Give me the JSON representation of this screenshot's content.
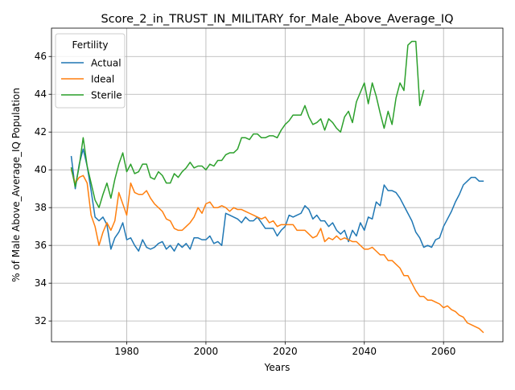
{
  "chart_data": {
    "type": "line",
    "title": "Score_2_in_TRUST_IN_MILITARY_for_Male_Above_Average_IQ",
    "xlabel": "Years",
    "ylabel": "% of Male Above_Average_IQ Population",
    "xlim": [
      1961,
      2075
    ],
    "ylim": [
      30.9,
      47.5
    ],
    "xticks": [
      1980,
      2000,
      2020,
      2040,
      2060
    ],
    "yticks": [
      32,
      34,
      36,
      38,
      40,
      42,
      44,
      46
    ],
    "grid": true,
    "legend": {
      "title": "Fertility",
      "placement": "top-left"
    },
    "x": [
      1966,
      1967,
      1968,
      1969,
      1970,
      1971,
      1972,
      1973,
      1974,
      1975,
      1976,
      1977,
      1978,
      1979,
      1980,
      1981,
      1982,
      1983,
      1984,
      1985,
      1986,
      1987,
      1988,
      1989,
      1990,
      1991,
      1992,
      1993,
      1994,
      1995,
      1996,
      1997,
      1998,
      1999,
      2000,
      2001,
      2002,
      2003,
      2004,
      2005,
      2006,
      2007,
      2008,
      2009,
      2010,
      2011,
      2012,
      2013,
      2014,
      2015,
      2016,
      2017,
      2018,
      2019,
      2020,
      2021,
      2022,
      2023,
      2024,
      2025,
      2026,
      2027,
      2028,
      2029,
      2030,
      2031,
      2032,
      2033,
      2034,
      2035,
      2036,
      2037,
      2038,
      2039,
      2040,
      2041,
      2042,
      2043,
      2044,
      2045,
      2046,
      2047,
      2048,
      2049,
      2050,
      2051,
      2052,
      2053,
      2054,
      2055,
      2056,
      2057,
      2058,
      2059,
      2060,
      2061,
      2062,
      2063,
      2064,
      2065,
      2066,
      2067,
      2068,
      2069,
      2070
    ],
    "series": [
      {
        "name": "Actual",
        "color": "#1f77b4",
        "values": [
          40.7,
          39.0,
          40.3,
          41.1,
          40.2,
          38.9,
          37.5,
          37.3,
          37.5,
          37.1,
          35.8,
          36.4,
          36.7,
          37.2,
          36.3,
          36.4,
          36.0,
          35.7,
          36.3,
          35.9,
          35.8,
          35.9,
          36.1,
          36.2,
          35.8,
          36.0,
          35.7,
          36.1,
          35.9,
          36.1,
          35.8,
          36.4,
          36.4,
          36.3,
          36.3,
          36.5,
          36.1,
          36.2,
          36.0,
          37.7,
          37.6,
          37.5,
          37.4,
          37.2,
          37.5,
          37.3,
          37.3,
          37.5,
          37.2,
          36.9,
          36.9,
          36.9,
          36.5,
          36.8,
          37.0,
          37.6,
          37.5,
          37.6,
          37.7,
          38.1,
          37.9,
          37.4,
          37.6,
          37.3,
          37.3,
          37.0,
          37.2,
          36.8,
          36.6,
          36.8,
          36.2,
          36.8,
          36.5,
          37.2,
          36.8,
          37.5,
          37.4,
          38.3,
          38.1,
          39.2,
          38.9,
          38.9,
          38.8,
          38.5,
          38.1,
          37.7,
          37.3,
          36.7,
          36.4,
          35.9,
          36.0,
          35.9,
          36.3,
          36.4,
          37.0,
          37.4,
          37.8,
          38.3,
          38.7,
          39.2,
          39.4,
          39.6,
          39.6,
          39.4,
          39.4
        ]
      },
      {
        "name": "Ideal",
        "color": "#ff7f0e",
        "values": [
          40.0,
          39.3,
          39.6,
          39.7,
          39.3,
          37.6,
          37.0,
          36.0,
          36.7,
          37.2,
          36.8,
          37.3,
          38.8,
          38.2,
          37.6,
          39.3,
          38.8,
          38.7,
          38.7,
          38.9,
          38.5,
          38.2,
          38.0,
          37.8,
          37.4,
          37.3,
          36.9,
          36.8,
          36.8,
          37.0,
          37.2,
          37.5,
          38.0,
          37.7,
          38.2,
          38.3,
          38.0,
          38.0,
          38.1,
          38.0,
          37.8,
          38.0,
          37.9,
          37.9,
          37.8,
          37.7,
          37.6,
          37.5,
          37.4,
          37.5,
          37.2,
          37.3,
          37.0,
          37.1,
          37.1,
          37.1,
          37.1,
          36.8,
          36.8,
          36.8,
          36.6,
          36.4,
          36.5,
          36.9,
          36.2,
          36.4,
          36.3,
          36.5,
          36.3,
          36.4,
          36.3,
          36.2,
          36.2,
          36.0,
          35.8,
          35.8,
          35.9,
          35.7,
          35.5,
          35.5,
          35.2,
          35.2,
          35.0,
          34.8,
          34.4,
          34.4,
          34.0,
          33.6,
          33.3,
          33.3,
          33.1,
          33.1,
          33.0,
          32.9,
          32.7,
          32.8,
          32.6,
          32.5,
          32.3,
          32.2,
          31.9,
          31.8,
          31.7,
          31.6,
          31.4
        ]
      },
      {
        "name": "Sterile",
        "color": "#2ca02c",
        "values": [
          40.1,
          39.1,
          40.2,
          41.7,
          40.2,
          39.3,
          38.4,
          38.0,
          38.7,
          39.3,
          38.5,
          39.5,
          40.3,
          40.9,
          39.9,
          40.3,
          39.8,
          39.9,
          40.3,
          40.3,
          39.6,
          39.5,
          39.9,
          39.7,
          39.3,
          39.3,
          39.8,
          39.6,
          39.9,
          40.1,
          40.4,
          40.1,
          40.2,
          40.2,
          40.0,
          40.3,
          40.2,
          40.5,
          40.5,
          40.8,
          40.9,
          40.9,
          41.1,
          41.7,
          41.7,
          41.6,
          41.9,
          41.9,
          41.7,
          41.7,
          41.8,
          41.8,
          41.7,
          42.1,
          42.4,
          42.6,
          42.9,
          42.9,
          42.9,
          43.4,
          42.8,
          42.4,
          42.5,
          42.7,
          42.1,
          42.7,
          42.5,
          42.2,
          42.0,
          42.8,
          43.1,
          42.5,
          43.6,
          44.1,
          44.6,
          43.5,
          44.6,
          43.9,
          43.0,
          42.2,
          43.1,
          42.4,
          43.8,
          44.6,
          44.2,
          46.6,
          46.8,
          46.8,
          43.4,
          44.2,
          null,
          null,
          null,
          null,
          null,
          null,
          null,
          null,
          null,
          null,
          null,
          null,
          null,
          null,
          null
        ]
      }
    ]
  }
}
